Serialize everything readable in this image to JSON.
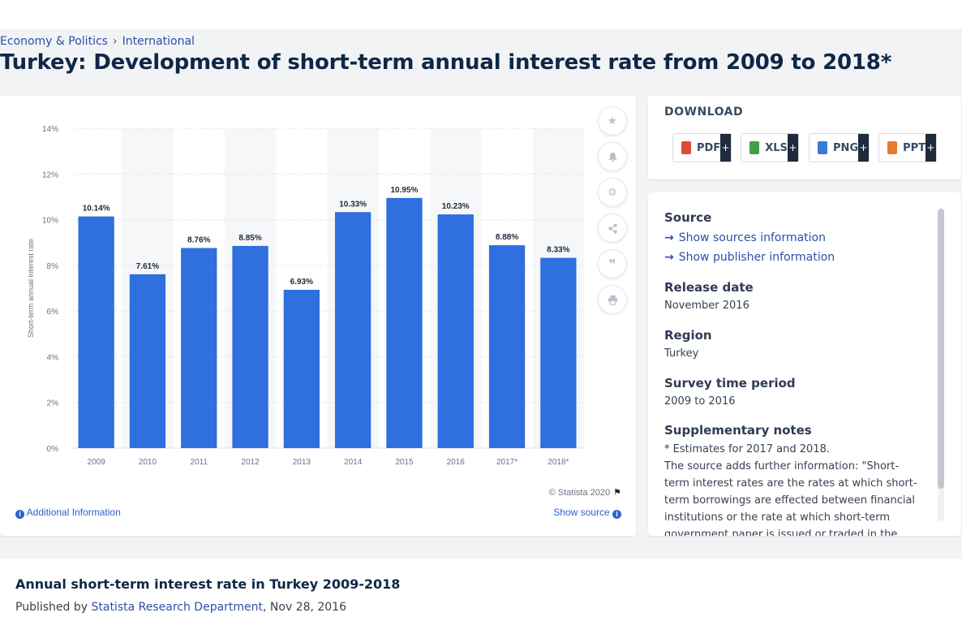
{
  "breadcrumb": {
    "item1": "Economy & Politics",
    "item2": "International"
  },
  "page_title": "Turkey: Development of short-term annual interest rate from 2009 to 2018*",
  "chart_data": {
    "type": "bar",
    "categories": [
      "2009",
      "2010",
      "2011",
      "2012",
      "2013",
      "2014",
      "2015",
      "2016",
      "2017*",
      "2018*"
    ],
    "values": [
      10.14,
      7.61,
      8.76,
      8.85,
      6.93,
      10.33,
      10.95,
      10.23,
      8.88,
      8.33
    ],
    "data_labels": [
      "10.14%",
      "7.61%",
      "8.76%",
      "8.85%",
      "6.93%",
      "10.33%",
      "10.95%",
      "10.23%",
      "8.88%",
      "8.33%"
    ],
    "yticks": [
      "0%",
      "2%",
      "4%",
      "6%",
      "8%",
      "10%",
      "12%",
      "14%"
    ],
    "ylim": [
      0,
      14
    ],
    "ylabel": "Short-term annual interest rate",
    "xlabel": "",
    "bar_color": "#2f6fde",
    "grid": true
  },
  "chart_footer": {
    "copyright": "© Statista 2020",
    "additional_info": "Additional Information",
    "show_source": "Show source"
  },
  "tools": [
    "star-icon",
    "bell-icon",
    "gear-icon",
    "share-icon",
    "quote-icon",
    "print-icon"
  ],
  "download": {
    "title": "DOWNLOAD",
    "buttons": [
      {
        "label": "PDF",
        "color": "#e04a3a"
      },
      {
        "label": "XLS",
        "color": "#3ea04b"
      },
      {
        "label": "PNG",
        "color": "#3a7bd5"
      },
      {
        "label": "PPT",
        "color": "#e8792f"
      }
    ],
    "plus": "+"
  },
  "meta": {
    "source_h": "Source",
    "show_sources": "Show sources information",
    "show_publisher": "Show publisher information",
    "release_h": "Release date",
    "release_v": "November 2016",
    "region_h": "Region",
    "region_v": "Turkey",
    "survey_h": "Survey time period",
    "survey_v": "2009 to 2016",
    "supp_h": "Supplementary notes",
    "supp_1": "* Estimates for 2017 and 2018.",
    "supp_2": "The source adds further information: \"Short-term interest rates are the rates at which short-term borrowings are effected between financial institutions or the rate at which short-term government paper is issued or traded in the"
  },
  "bottom": {
    "title": "Annual short-term interest rate in Turkey 2009-2018",
    "published_by": "Published by ",
    "author": "Statista Research Department",
    "date": ", Nov 28, 2016"
  }
}
